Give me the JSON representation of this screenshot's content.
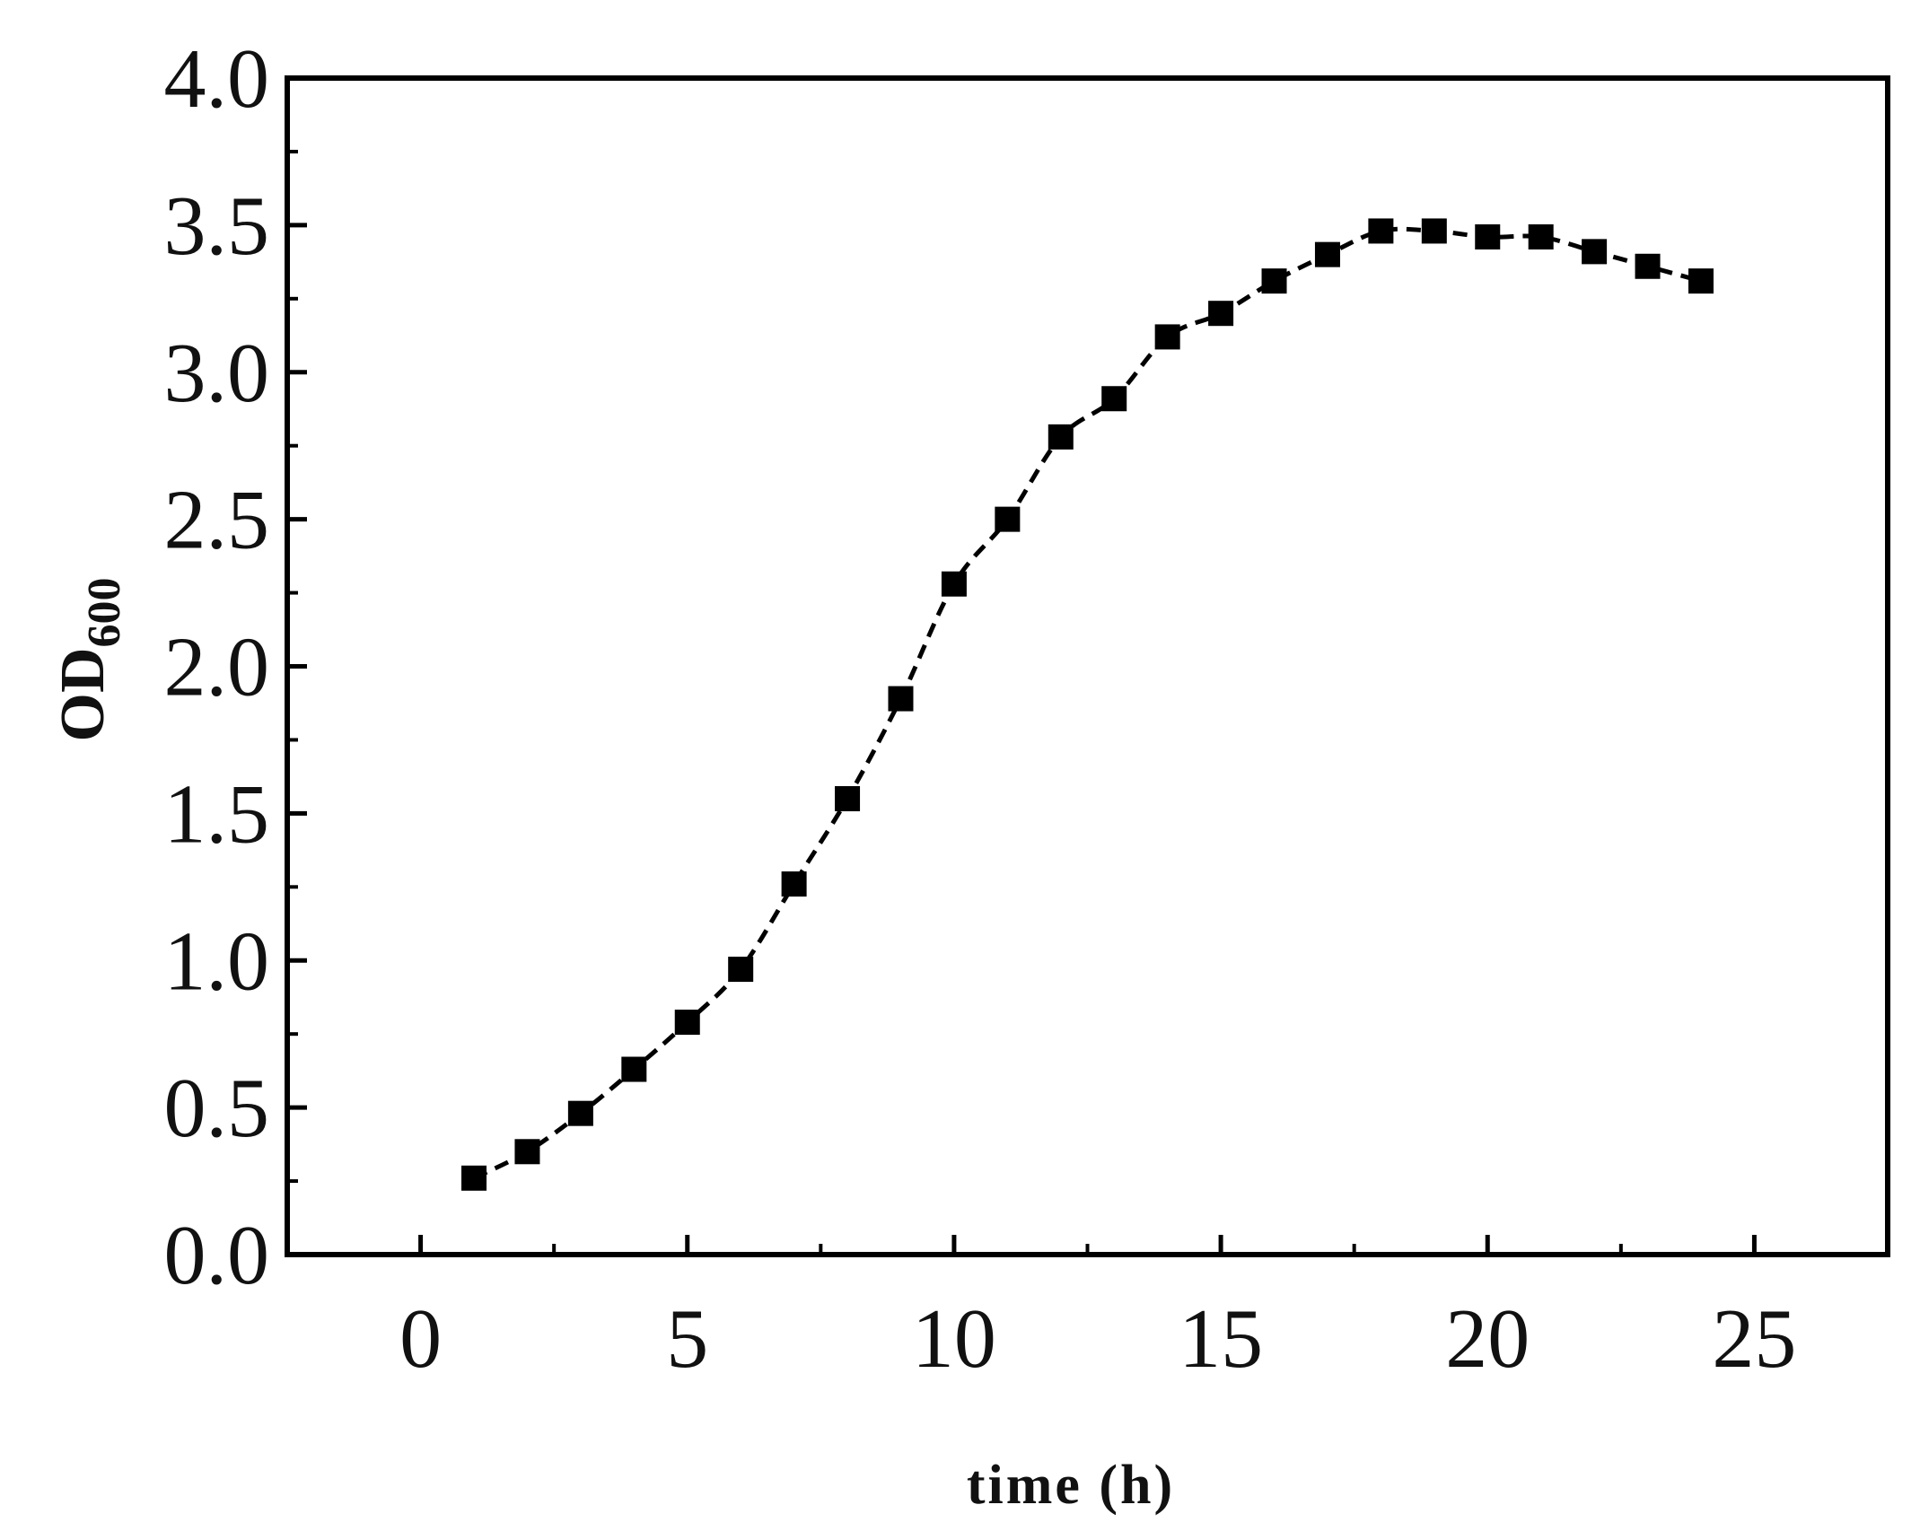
{
  "chart_data": {
    "type": "scatter",
    "title": "",
    "xlabel": "time (h)",
    "ylabel": {
      "main": "OD",
      "subscript": "600"
    },
    "xlim": [
      -2.5,
      27.5
    ],
    "ylim": [
      0,
      4.0
    ],
    "x_ticks": [
      "0",
      "5",
      "10",
      "15",
      "20",
      "25"
    ],
    "y_ticks": [
      "0.0",
      "0.5",
      "1.0",
      "1.5",
      "2.0",
      "2.5",
      "3.0",
      "3.5",
      "4.0"
    ],
    "grid": false,
    "legend": "none",
    "line_style": "dashed",
    "marker": "square",
    "color": "#000000",
    "series": [
      {
        "x": [
          1,
          2,
          3,
          4,
          5,
          6,
          7,
          8,
          9,
          10,
          11,
          12,
          13,
          14,
          15,
          16,
          17,
          18,
          19,
          20,
          21,
          22,
          23,
          24
        ],
        "values": [
          0.26,
          0.35,
          0.48,
          0.63,
          0.79,
          0.97,
          1.26,
          1.55,
          1.89,
          2.28,
          2.5,
          2.78,
          2.91,
          3.12,
          3.2,
          3.31,
          3.4,
          3.48,
          3.48,
          3.46,
          3.46,
          3.41,
          3.36,
          3.31
        ]
      }
    ]
  }
}
